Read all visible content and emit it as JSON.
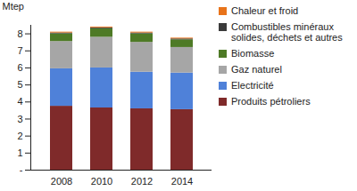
{
  "chart_data": {
    "type": "bar",
    "stacked": true,
    "legend": "right",
    "y_label": "Mtep",
    "categories": [
      "2008",
      "2010",
      "2012",
      "2014"
    ],
    "ylim": [
      0,
      8.5
    ],
    "yticks": [
      {
        "value": 0,
        "label": "-"
      },
      1,
      2,
      3,
      4,
      5,
      6,
      7,
      8
    ],
    "series": [
      {
        "name": "Produits pétroliers",
        "color": "#7f2a2a",
        "values": [
          3.75,
          3.65,
          3.6,
          3.55
        ]
      },
      {
        "name": "Electricité",
        "color": "#4f81d9",
        "values": [
          2.2,
          2.35,
          2.15,
          2.15
        ]
      },
      {
        "name": "Gaz naturel",
        "color": "#a6a6a6",
        "values": [
          1.6,
          1.8,
          1.75,
          1.5
        ]
      },
      {
        "name": "Biomasse",
        "color": "#4e7a26",
        "values": [
          0.45,
          0.5,
          0.5,
          0.45
        ]
      },
      {
        "name": "Combustibles minéraux solides, déchets et autres",
        "color": "#3a3a3a",
        "values": [
          0.05,
          0.05,
          0.05,
          0.05
        ]
      },
      {
        "name": "Chaleur et froid",
        "color": "#e8731a",
        "values": [
          0.05,
          0.05,
          0.05,
          0.05
        ]
      }
    ]
  }
}
